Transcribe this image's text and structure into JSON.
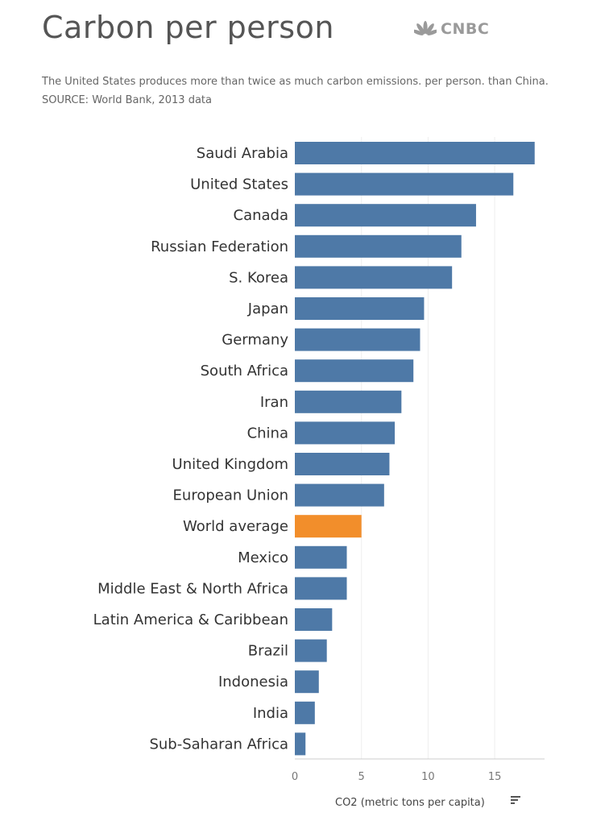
{
  "title": "Carbon per person",
  "subtitle": "The United States produces more than twice as much carbon emissions. per person. than China. SOURCE: World Bank, 2013 data",
  "logo": {
    "text": "CNBC",
    "icon": "nbc-peacock-icon",
    "color": "#9a9a9a"
  },
  "chart_data": {
    "type": "bar",
    "orientation": "horizontal",
    "categories": [
      "Saudi Arabia",
      "United States",
      "Canada",
      "Russian Federation",
      "S. Korea",
      "Japan",
      "Germany",
      "South Africa",
      "Iran",
      "China",
      "United Kingdom",
      "European Union",
      "World average",
      "Mexico",
      "Middle East & North Africa",
      "Latin America & Caribbean",
      "Brazil",
      "Indonesia",
      "India",
      "Sub-Saharan Africa"
    ],
    "values": [
      18.0,
      16.4,
      13.6,
      12.5,
      11.8,
      9.7,
      9.4,
      8.9,
      8.0,
      7.5,
      7.1,
      6.7,
      5.0,
      3.9,
      3.9,
      2.8,
      2.4,
      1.8,
      1.5,
      0.8
    ],
    "highlight": "World average",
    "xlabel": "CO2  (metric tons per capita)",
    "xlim": [
      0,
      18.5
    ],
    "xticks": [
      0,
      5,
      10,
      15
    ],
    "grid": true,
    "colors": {
      "bar": "#4e79a7",
      "highlight": "#f28e2b",
      "grid": "#eeeeee",
      "axis": "#cccccc"
    },
    "sort_icon": "sort-descending-icon"
  }
}
